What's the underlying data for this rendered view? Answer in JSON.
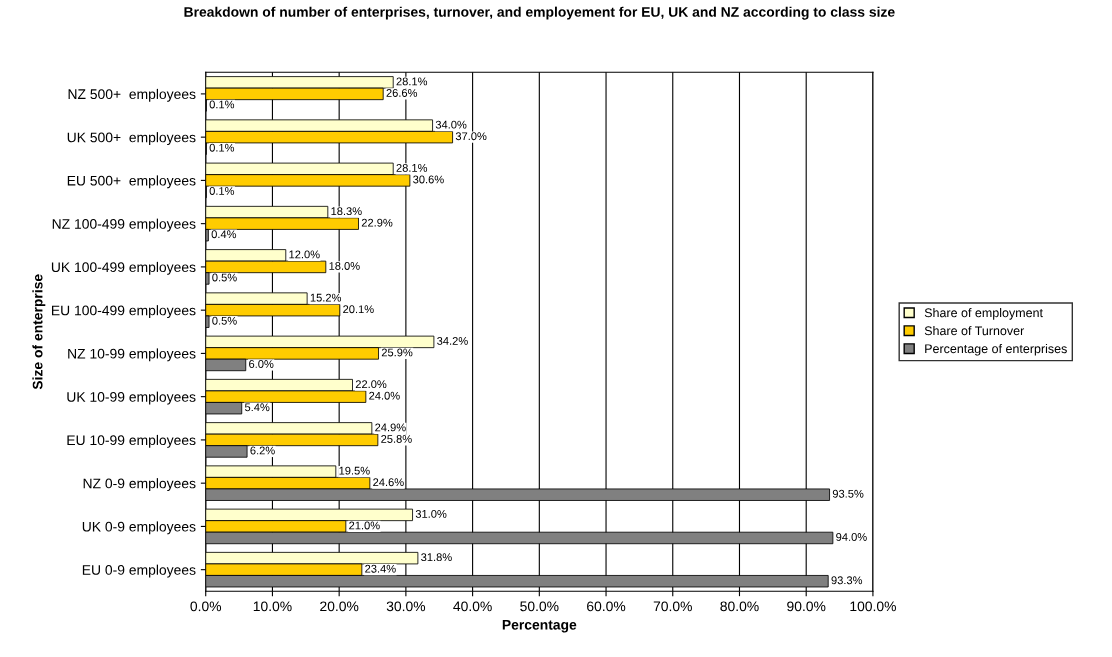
{
  "chart_data": {
    "type": "bar",
    "orientation": "horizontal",
    "title": "Breakdown of number of enterprises, turnover, and employement for EU, UK and NZ according to class size",
    "xlabel": "Percentage",
    "ylabel": "Size of enterprise",
    "categories": [
      "NZ 500+  employees",
      "UK 500+  employees",
      "EU 500+  employees",
      "NZ 100-499 employees",
      "UK 100-499 employees",
      "EU 100-499 employees",
      "NZ 10-99 employees",
      "UK 10-99 employees",
      "EU 10-99 employees",
      "NZ 0-9 employees",
      "UK 0-9 employees",
      "EU 0-9 employees"
    ],
    "series": [
      {
        "name": "Share of employment",
        "color": "#ffffcc",
        "values": [
          28.1,
          34.0,
          28.1,
          18.3,
          12.0,
          15.2,
          34.2,
          22.0,
          24.9,
          19.5,
          31.0,
          31.8
        ],
        "value_labels": [
          "28.1%",
          "34.0%",
          "28.1%",
          "18.3%",
          "12.0%",
          "15.2%",
          "34.2%",
          "22.0%",
          "24.9%",
          "19.5%",
          "31.0%",
          "31.8%"
        ]
      },
      {
        "name": "Share of Turnover",
        "color": "#ffcc00",
        "values": [
          26.6,
          37.0,
          30.6,
          22.9,
          18.0,
          20.1,
          25.9,
          24.0,
          25.8,
          24.6,
          21.0,
          23.4
        ],
        "value_labels": [
          "26.6%",
          "37.0%",
          "30.6%",
          "22.9%",
          "18.0%",
          "20.1%",
          "25.9%",
          "24.0%",
          "25.8%",
          "24.6%",
          "21.0%",
          "23.4%"
        ]
      },
      {
        "name": "Percentage of enterprises",
        "color": "#808080",
        "values": [
          0.1,
          0.1,
          0.1,
          0.4,
          0.5,
          0.5,
          6.0,
          5.4,
          6.2,
          93.5,
          94.0,
          93.3
        ],
        "value_labels": [
          "0.1%",
          "0.1%",
          "0.1%",
          "0.4%",
          "0.5%",
          "0.5%",
          "6.0%",
          "5.4%",
          "6.2%",
          "93.5%",
          "94.0%",
          "93.3%"
        ]
      }
    ],
    "xlim": [
      0,
      100
    ],
    "xticks": [
      {
        "value": 0,
        "label": "0.0%"
      },
      {
        "value": 10,
        "label": "10.0%"
      },
      {
        "value": 20,
        "label": "20.0%"
      },
      {
        "value": 30,
        "label": "30.0%"
      },
      {
        "value": 40,
        "label": "40.0%"
      },
      {
        "value": 50,
        "label": "50.0%"
      },
      {
        "value": 60,
        "label": "60.0%"
      },
      {
        "value": 70,
        "label": "70.0%"
      },
      {
        "value": 80,
        "label": "80.0%"
      },
      {
        "value": 90,
        "label": "90.0%"
      },
      {
        "value": 100,
        "label": "100.0%"
      }
    ],
    "grid": "x",
    "legend": "right"
  }
}
